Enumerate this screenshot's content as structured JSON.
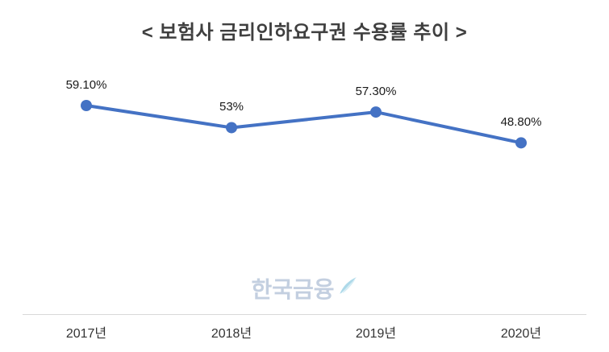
{
  "chart_data": {
    "type": "line",
    "title": "< 보험사 금리인하요구권 수용률 추이 >",
    "categories": [
      "2017년",
      "2018년",
      "2019년",
      "2020년"
    ],
    "values": [
      59.1,
      53,
      57.3,
      48.8
    ],
    "data_labels": [
      "59.10%",
      "53%",
      "57.30%",
      "48.80%"
    ],
    "line_color": "#4472c4",
    "marker": "circle",
    "grid": "off",
    "legend": "none",
    "x_axis_line_color": "#d9d9d9"
  },
  "watermark": {
    "text": "한국금융",
    "color": "#b9c7db"
  }
}
